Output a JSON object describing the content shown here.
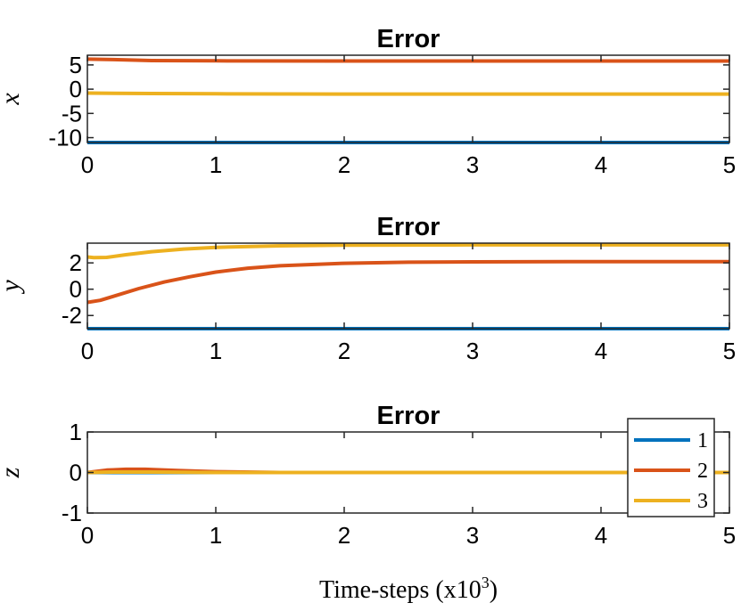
{
  "figure": {
    "xlabel_text": "Time-steps (x10",
    "xlabel_sup": "3",
    "xlabel_close": ")"
  },
  "chart_data": [
    {
      "type": "line",
      "title": "Error",
      "ylabel": "x",
      "xlim": [
        0,
        5
      ],
      "ylim": [
        -11,
        7
      ],
      "xticks": [
        "0",
        "1",
        "2",
        "3",
        "4",
        "5"
      ],
      "yticks": [
        5,
        0,
        -5,
        -10
      ],
      "ytick_labels": [
        "5",
        "0",
        "-5",
        "-10"
      ],
      "series": [
        {
          "name": "1",
          "color": "#0072BD",
          "x": [
            0,
            5
          ],
          "y": [
            -11,
            -11
          ]
        },
        {
          "name": "2",
          "color": "#D95319",
          "x": [
            0,
            0.2,
            0.5,
            1,
            2,
            3,
            4,
            5
          ],
          "y": [
            6.2,
            6.1,
            5.9,
            5.85,
            5.8,
            5.8,
            5.8,
            5.8
          ]
        },
        {
          "name": "3",
          "color": "#EDB120",
          "x": [
            0,
            0.5,
            1,
            2,
            3,
            4,
            5
          ],
          "y": [
            -0.8,
            -0.9,
            -0.95,
            -1.0,
            -1.0,
            -1.0,
            -1.0
          ]
        }
      ]
    },
    {
      "type": "line",
      "title": "Error",
      "ylabel": "y",
      "xlim": [
        0,
        5
      ],
      "ylim": [
        -3,
        3.5
      ],
      "xticks": [
        "0",
        "1",
        "2",
        "3",
        "4",
        "5"
      ],
      "yticks": [
        2,
        0,
        -2
      ],
      "ytick_labels": [
        "2",
        "0",
        "-2"
      ],
      "series": [
        {
          "name": "1",
          "color": "#0072BD",
          "x": [
            0,
            5
          ],
          "y": [
            -3,
            -3
          ]
        },
        {
          "name": "2",
          "color": "#D95319",
          "x": [
            0,
            0.1,
            0.2,
            0.4,
            0.6,
            0.8,
            1,
            1.25,
            1.5,
            2,
            2.5,
            3,
            4,
            5
          ],
          "y": [
            -1.0,
            -0.85,
            -0.55,
            0.05,
            0.55,
            0.95,
            1.3,
            1.6,
            1.78,
            1.97,
            2.05,
            2.08,
            2.1,
            2.1
          ]
        },
        {
          "name": "3",
          "color": "#EDB120",
          "x": [
            0,
            0.05,
            0.15,
            0.3,
            0.5,
            0.75,
            1,
            1.5,
            2,
            3,
            4,
            5
          ],
          "y": [
            2.45,
            2.4,
            2.42,
            2.62,
            2.85,
            3.05,
            3.18,
            3.3,
            3.35,
            3.37,
            3.37,
            3.37
          ]
        }
      ]
    },
    {
      "type": "line",
      "title": "Error",
      "ylabel": "z",
      "xlim": [
        0,
        5
      ],
      "ylim": [
        -1,
        1
      ],
      "xticks": [
        "0",
        "1",
        "2",
        "3",
        "4",
        "5"
      ],
      "yticks": [
        1,
        0,
        -1
      ],
      "ytick_labels": [
        "1",
        "0",
        "-1"
      ],
      "legend": {
        "position": "right",
        "entries": [
          "1",
          "2",
          "3"
        ]
      },
      "series": [
        {
          "name": "1",
          "color": "#0072BD",
          "x": [
            0,
            5
          ],
          "y": [
            0,
            0
          ]
        },
        {
          "name": "2",
          "color": "#D95319",
          "x": [
            0,
            0.15,
            0.3,
            0.45,
            0.7,
            1,
            1.5,
            2,
            5
          ],
          "y": [
            0.0,
            0.06,
            0.08,
            0.08,
            0.05,
            0.02,
            0.0,
            0.0,
            0.0
          ]
        },
        {
          "name": "3",
          "color": "#EDB120",
          "x": [
            0,
            0.2,
            0.5,
            1,
            5
          ],
          "y": [
            0.0,
            0.01,
            0.01,
            0.0,
            0.0
          ]
        }
      ]
    }
  ]
}
